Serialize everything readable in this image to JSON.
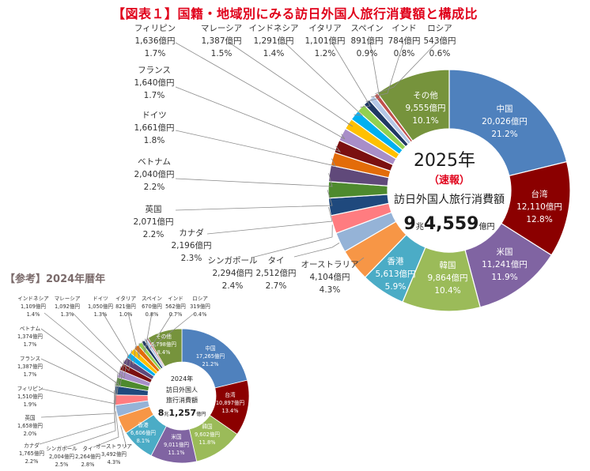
{
  "figure_title": "【図表１】国籍・地域別にみる訪日外国人旅行消費額と構成比",
  "subtitle_2024": "【参考】2024年暦年",
  "main_center": {
    "year": "2025年",
    "note": "（速報）",
    "label": "訪日外国人旅行消費額",
    "total_cho": "9",
    "total_rest": "4,559",
    "unit_cho": "兆",
    "unit_oku": "億円"
  },
  "small_center": {
    "year": "2024年",
    "label1": "訪日外国人",
    "label2": "旅行消費額",
    "total_cho": "8",
    "total_rest": "1,257",
    "unit_cho": "兆",
    "unit_oku": "億円"
  },
  "chart_data": [
    {
      "type": "pie",
      "year": "2025年",
      "series": [
        {
          "name": "中国",
          "amount": "20,026億円",
          "share": "21.2%",
          "value": 20026,
          "color": "#4f81bd"
        },
        {
          "name": "台湾",
          "amount": "12,110億円",
          "share": "12.8%",
          "value": 12110,
          "color": "#8b0000"
        },
        {
          "name": "米国",
          "amount": "11,241億円",
          "share": "11.9%",
          "value": 11241,
          "color": "#8064a2"
        },
        {
          "name": "韓国",
          "amount": "9,864億円",
          "share": "10.4%",
          "value": 9864,
          "color": "#9bbb59"
        },
        {
          "name": "香港",
          "amount": "5,613億円",
          "share": "5.9%",
          "value": 5613,
          "color": "#4bacc6"
        },
        {
          "name": "オーストラリア",
          "amount": "4,104億円",
          "share": "4.3%",
          "value": 4104,
          "color": "#f79646"
        },
        {
          "name": "タイ",
          "amount": "2,512億円",
          "share": "2.7%",
          "value": 2512,
          "color": "#95b3d7"
        },
        {
          "name": "シンガポール",
          "amount": "2,294億円",
          "share": "2.4%",
          "value": 2294,
          "color": "#ff7c80"
        },
        {
          "name": "カナダ",
          "amount": "2,196億円",
          "share": "2.3%",
          "value": 2196,
          "color": "#1f497d"
        },
        {
          "name": "英国",
          "amount": "2,071億円",
          "share": "2.2%",
          "value": 2071,
          "color": "#4e8a2e"
        },
        {
          "name": "ベトナム",
          "amount": "2,040億円",
          "share": "2.2%",
          "value": 2040,
          "color": "#60497a"
        },
        {
          "name": "ドイツ",
          "amount": "1,661億円",
          "share": "1.8%",
          "value": 1661,
          "color": "#e36c09"
        },
        {
          "name": "フランス",
          "amount": "1,640億円",
          "share": "1.7%",
          "value": 1640,
          "color": "#7b1010"
        },
        {
          "name": "フィリピン",
          "amount": "1,636億円",
          "share": "1.7%",
          "value": 1636,
          "color": "#a88ec8"
        },
        {
          "name": "マレーシア",
          "amount": "1,387億円",
          "share": "1.5%",
          "value": 1387,
          "color": "#ffc000"
        },
        {
          "name": "インドネシア",
          "amount": "1,291億円",
          "share": "1.4%",
          "value": 1291,
          "color": "#00b0f0"
        },
        {
          "name": "イタリア",
          "amount": "1,101億円",
          "share": "1.2%",
          "value": 1101,
          "color": "#92d050"
        },
        {
          "name": "スペイン",
          "amount": "891億円",
          "share": "0.9%",
          "value": 891,
          "color": "#1f3864"
        },
        {
          "name": "インド",
          "amount": "784億円",
          "share": "0.8%",
          "value": 784,
          "color": "#b4c7e7"
        },
        {
          "name": "ロシア",
          "amount": "543億円",
          "share": "0.6%",
          "value": 543,
          "color": "#c0504d"
        },
        {
          "name": "その他",
          "amount": "9,555億円",
          "share": "10.1%",
          "value": 9555,
          "color": "#76933c"
        }
      ]
    },
    {
      "type": "pie",
      "year": "2024年",
      "series": [
        {
          "name": "中国",
          "amount": "17,265億円",
          "share": "21.2%",
          "value": 17265,
          "color": "#4f81bd"
        },
        {
          "name": "台湾",
          "amount": "10,897億円",
          "share": "13.4%",
          "value": 10897,
          "color": "#8b0000"
        },
        {
          "name": "韓国",
          "amount": "9,602億円",
          "share": "11.8%",
          "value": 9602,
          "color": "#9bbb59"
        },
        {
          "name": "米国",
          "amount": "9,011億円",
          "share": "11.1%",
          "value": 9011,
          "color": "#8064a2"
        },
        {
          "name": "香港",
          "amount": "6,606億円",
          "share": "8.1%",
          "value": 6606,
          "color": "#4bacc6"
        },
        {
          "name": "オーストラリア",
          "amount": "3,492億円",
          "share": "4.3%",
          "value": 3492,
          "color": "#f79646"
        },
        {
          "name": "タイ",
          "amount": "2,264億円",
          "share": "2.8%",
          "value": 2264,
          "color": "#95b3d7"
        },
        {
          "name": "シンガポール",
          "amount": "2,004億円",
          "share": "2.5%",
          "value": 2004,
          "color": "#ff7c80"
        },
        {
          "name": "カナダ",
          "amount": "1,765億円",
          "share": "2.2%",
          "value": 1765,
          "color": "#1f497d"
        },
        {
          "name": "英国",
          "amount": "1,658億円",
          "share": "2.0%",
          "value": 1658,
          "color": "#4e8a2e"
        },
        {
          "name": "フィリピン",
          "amount": "1,510億円",
          "share": "1.9%",
          "value": 1510,
          "color": "#a88ec8"
        },
        {
          "name": "フランス",
          "amount": "1,387億円",
          "share": "1.7%",
          "value": 1387,
          "color": "#7b1010"
        },
        {
          "name": "ベトナム",
          "amount": "1,374億円",
          "share": "1.7%",
          "value": 1374,
          "color": "#60497a"
        },
        {
          "name": "インドネシア",
          "amount": "1,109億円",
          "share": "1.4%",
          "value": 1109,
          "color": "#00b0f0"
        },
        {
          "name": "マレーシア",
          "amount": "1,092億円",
          "share": "1.3%",
          "value": 1092,
          "color": "#ffc000"
        },
        {
          "name": "ドイツ",
          "amount": "1,050億円",
          "share": "1.3%",
          "value": 1050,
          "color": "#e36c09"
        },
        {
          "name": "イタリア",
          "amount": "821億円",
          "share": "1.0%",
          "value": 821,
          "color": "#92d050"
        },
        {
          "name": "スペイン",
          "amount": "670億円",
          "share": "0.8%",
          "value": 670,
          "color": "#1f3864"
        },
        {
          "name": "インド",
          "amount": "562億円",
          "share": "0.7%",
          "value": 562,
          "color": "#b4c7e7"
        },
        {
          "name": "ロシア",
          "amount": "319億円",
          "share": "0.4%",
          "value": 319,
          "color": "#c0504d"
        },
        {
          "name": "その他",
          "amount": "6,798億円",
          "share": "8.4%",
          "value": 6798,
          "color": "#76933c"
        }
      ]
    }
  ]
}
